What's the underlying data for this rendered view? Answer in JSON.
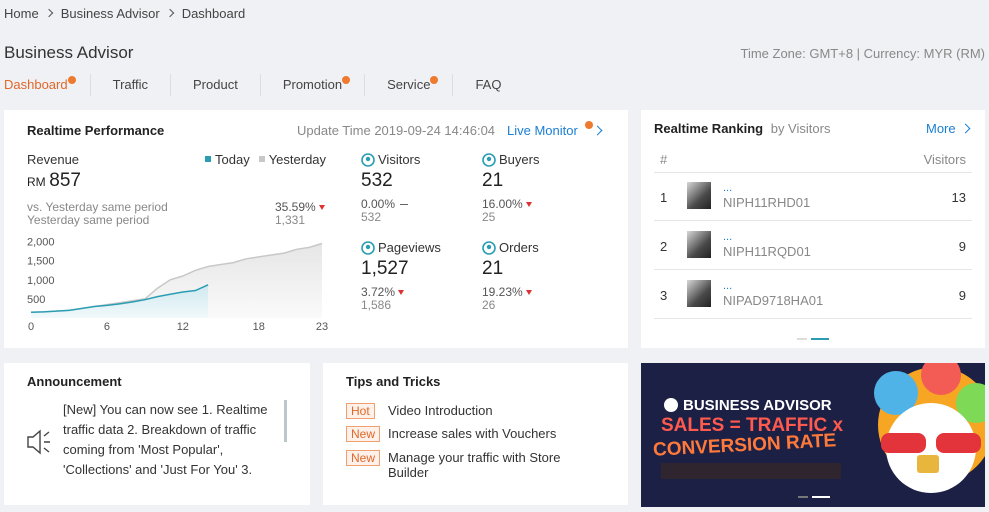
{
  "breadcrumb": [
    "Home",
    "Business Advisor",
    "Dashboard"
  ],
  "header": {
    "title": "Business Advisor",
    "meta": "Time Zone: GMT+8 | Currency: MYR (RM)"
  },
  "tabs": [
    {
      "label": "Dashboard",
      "active": true,
      "dot": true
    },
    {
      "label": "Traffic",
      "active": false,
      "dot": false
    },
    {
      "label": "Product",
      "active": false,
      "dot": false
    },
    {
      "label": "Promotion",
      "active": false,
      "dot": true
    },
    {
      "label": "Service",
      "active": false,
      "dot": true
    },
    {
      "label": "FAQ",
      "active": false,
      "dot": false
    }
  ],
  "performance": {
    "title": "Realtime Performance",
    "update_time": "Update Time 2019-09-24 14:46:04",
    "live_monitor": "Live Monitor",
    "revenue": {
      "label": "Revenue",
      "currency": "RM",
      "value": "857",
      "vs_label": "vs. Yesterday same period",
      "change": "35.59%",
      "trend": "down",
      "yesterday_label": "Yesterday same period",
      "yesterday": "1,331"
    },
    "chart": {
      "type": "line",
      "x": [
        0,
        1,
        2,
        3,
        4,
        5,
        6,
        7,
        8,
        9,
        10,
        11,
        12,
        13,
        14,
        15,
        16,
        17,
        18,
        19,
        20,
        21,
        22,
        23
      ],
      "xlim": [
        0,
        23
      ],
      "xticks": [
        0,
        6,
        12,
        18,
        23
      ],
      "ylim": [
        0,
        2200
      ],
      "yticks": [
        500,
        {
          "value": 1000,
          "label": "1,000"
        },
        {
          "value": 1500,
          "label": "1,500"
        },
        {
          "value": 2000,
          "label": "2,000"
        }
      ],
      "series": [
        {
          "name": "Today",
          "color": "#2a9db3",
          "values": [
            150,
            160,
            180,
            200,
            250,
            300,
            330,
            370,
            420,
            480,
            560,
            620,
            680,
            720,
            870,
            null,
            null,
            null,
            null,
            null,
            null,
            null,
            null,
            null
          ]
        },
        {
          "name": "Yesterday",
          "color": "#c8c8c8",
          "values": [
            150,
            160,
            180,
            200,
            250,
            300,
            350,
            400,
            450,
            500,
            780,
            1000,
            1100,
            1250,
            1350,
            1400,
            1450,
            1550,
            1600,
            1650,
            1700,
            1800,
            1850,
            1950
          ]
        }
      ]
    },
    "metrics": [
      {
        "label": "Visitors",
        "value": "532",
        "change": "0.00%",
        "trend": "flat",
        "previous": "532"
      },
      {
        "label": "Buyers",
        "value": "21",
        "change": "16.00%",
        "trend": "down",
        "previous": "25"
      },
      {
        "label": "Pageviews",
        "value": "1,527",
        "change": "3.72%",
        "trend": "down",
        "previous": "1,586"
      },
      {
        "label": "Orders",
        "value": "21",
        "change": "19.23%",
        "trend": "down",
        "previous": "26"
      }
    ]
  },
  "ranking": {
    "title": "Realtime Ranking",
    "subtitle": "by Visitors",
    "more": "More",
    "columns": [
      "#",
      "Visitors"
    ],
    "rows": [
      {
        "rank": "1",
        "name": "...",
        "sku": "NIPH11RHD01",
        "visitors": "13"
      },
      {
        "rank": "2",
        "name": "...",
        "sku": "NIPH11RQD01",
        "visitors": "9"
      },
      {
        "rank": "3",
        "name": "...",
        "sku": "NIPAD9718HA01",
        "visitors": "9"
      }
    ]
  },
  "announcement": {
    "title": "Announcement",
    "text": "[New] You can now see 1. Realtime traffic data 2. Breakdown of traffic coming from 'Most Popular', 'Collections' and 'Just For You' 3."
  },
  "tips": {
    "title": "Tips and Tricks",
    "items": [
      {
        "tag": "Hot",
        "text": "Video Introduction"
      },
      {
        "tag": "New",
        "text": "Increase sales with Vouchers"
      },
      {
        "tag": "New",
        "text": "Manage your traffic with Store Builder"
      }
    ]
  },
  "banner": {
    "brand": "BUSINESS ADVISOR",
    "line1": "SALES = TRAFFIC x",
    "line2": "CONVERSION RATE"
  }
}
